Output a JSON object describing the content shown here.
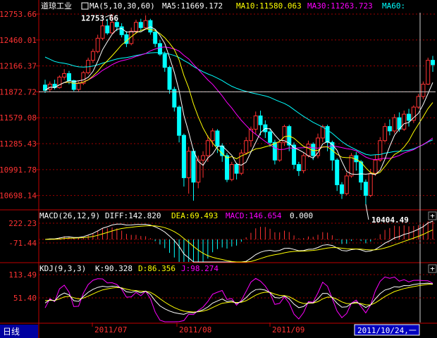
{
  "app": {
    "index_name": "道琼工业",
    "ma_label": "MA(5,10,30,60)",
    "ma5": "MA5:11669.172",
    "ma10": "MA10:11580.063",
    "ma30": "MA30:11263.723",
    "ma60": "MA60:",
    "period_tab": "日线",
    "cursor_date": "2011/10/24,一"
  },
  "main_panel": {
    "y_ticks": [
      "12753.66",
      "12460.01",
      "12166.37",
      "11872.72",
      "11579.08",
      "11285.43",
      "10991.78",
      "10698.14"
    ],
    "y_tick_values": [
      12753.66,
      12460.01,
      12166.37,
      11872.72,
      11579.08,
      11285.43,
      10991.78,
      10698.14
    ],
    "high_label": "12753.66",
    "low_label": "10404.49",
    "cursor_price": 11872.72
  },
  "macd_panel": {
    "title": "MACD(26,12,9)",
    "diff": "DIFF:142.820",
    "dea": "DEA:69.493",
    "macd": "MACD:146.654",
    "zero": "0.000",
    "y_ticks": [
      "222.23",
      "-71.44"
    ],
    "plus": "+"
  },
  "kdj_panel": {
    "title": "KDJ(9,3,3)",
    "k": "K:90.328",
    "d": "D:86.356",
    "j": "J:98.274",
    "y_ticks": [
      "113.49",
      "51.40"
    ],
    "plus": "+"
  },
  "x_axis": {
    "labels": [
      "2011/07",
      "2011/08",
      "2011/09"
    ]
  },
  "colors": {
    "up": "#ff3232",
    "down": "#00ffff",
    "ma5": "#ffffff",
    "ma10": "#ffff00",
    "ma30": "#ff00ff",
    "ma60": "#00ffff",
    "grid": "#a00000",
    "axis": "#c00000"
  },
  "chart_data": {
    "type": "candlestick",
    "ylim": [
      10404.49,
      12753.66
    ],
    "candles": [
      [
        11950,
        11890,
        12010,
        11860
      ],
      [
        11900,
        11960,
        11990,
        11870
      ],
      [
        11960,
        11920,
        12010,
        11900
      ],
      [
        11920,
        12040,
        12060,
        11910
      ],
      [
        12040,
        12080,
        12130,
        12010
      ],
      [
        12080,
        12000,
        12110,
        11960
      ],
      [
        12000,
        11900,
        12010,
        11880
      ],
      [
        11900,
        11970,
        11990,
        11880
      ],
      [
        11970,
        12090,
        12110,
        11950
      ],
      [
        12090,
        12230,
        12260,
        12070
      ],
      [
        12230,
        12330,
        12360,
        12200
      ],
      [
        12330,
        12480,
        12520,
        12310
      ],
      [
        12480,
        12620,
        12680,
        12460
      ],
      [
        12620,
        12540,
        12700,
        12520
      ],
      [
        12540,
        12660,
        12750,
        12520
      ],
      [
        12660,
        12610,
        12690,
        12560
      ],
      [
        12610,
        12520,
        12650,
        12490
      ],
      [
        12520,
        12420,
        12560,
        12380
      ],
      [
        12420,
        12560,
        12600,
        12400
      ],
      [
        12560,
        12660,
        12690,
        12530
      ],
      [
        12660,
        12600,
        12700,
        12560
      ],
      [
        12600,
        12680,
        12740,
        12580
      ],
      [
        12680,
        12550,
        12700,
        12520
      ],
      [
        12550,
        12420,
        12580,
        12380
      ],
      [
        12420,
        12300,
        12460,
        12280
      ],
      [
        12300,
        12150,
        12330,
        12100
      ],
      [
        12150,
        11900,
        12170,
        11850
      ],
      [
        11900,
        11700,
        11930,
        11650
      ],
      [
        11700,
        11380,
        11720,
        11300
      ],
      [
        11380,
        10900,
        11400,
        10800
      ],
      [
        10900,
        11200,
        11250,
        10720
      ],
      [
        11200,
        10850,
        11230,
        10640
      ],
      [
        10850,
        11100,
        11150,
        10780
      ],
      [
        11100,
        11150,
        11200,
        10900
      ],
      [
        11150,
        11320,
        11380,
        11080
      ],
      [
        11320,
        11430,
        11460,
        11250
      ],
      [
        11430,
        11260,
        11450,
        11180
      ],
      [
        11260,
        11150,
        11290,
        11080
      ],
      [
        11150,
        10880,
        11180,
        10850
      ],
      [
        10880,
        11050,
        11080,
        10860
      ],
      [
        11050,
        10950,
        11070,
        10880
      ],
      [
        10950,
        11180,
        11220,
        10930
      ],
      [
        11180,
        11320,
        11360,
        11160
      ],
      [
        11320,
        11450,
        11480,
        11250
      ],
      [
        11450,
        11600,
        11650,
        11400
      ],
      [
        11600,
        11500,
        11660,
        11380
      ],
      [
        11500,
        11420,
        11550,
        11350
      ],
      [
        11420,
        11300,
        11460,
        11250
      ],
      [
        11300,
        11100,
        11330,
        11050
      ],
      [
        11100,
        11300,
        11320,
        11080
      ],
      [
        11300,
        11480,
        11500,
        11260
      ],
      [
        11480,
        11270,
        11500,
        11200
      ],
      [
        11270,
        11050,
        11300,
        11000
      ],
      [
        11050,
        10980,
        11080,
        10920
      ],
      [
        10980,
        11150,
        11180,
        10950
      ],
      [
        11150,
        11280,
        11320,
        11130
      ],
      [
        11280,
        11150,
        11300,
        11100
      ],
      [
        11150,
        11350,
        11400,
        11120
      ],
      [
        11350,
        11480,
        11500,
        11300
      ],
      [
        11480,
        11300,
        11500,
        11200
      ],
      [
        11300,
        11100,
        11320,
        10980
      ],
      [
        11100,
        10820,
        11120,
        10750
      ],
      [
        10820,
        10720,
        10850,
        10660
      ],
      [
        10720,
        10920,
        10960,
        10700
      ],
      [
        10920,
        11150,
        11180,
        10900
      ],
      [
        11150,
        11080,
        11190,
        10980
      ],
      [
        11080,
        10850,
        11100,
        10760
      ],
      [
        10850,
        10700,
        10880,
        10600
      ],
      [
        10700,
        10950,
        11000,
        10680
      ],
      [
        10950,
        11100,
        11160,
        10920
      ],
      [
        11100,
        11320,
        11360,
        11080
      ],
      [
        11320,
        11480,
        11520,
        11300
      ],
      [
        11480,
        11430,
        11560,
        11380
      ],
      [
        11430,
        11580,
        11620,
        11400
      ],
      [
        11580,
        11450,
        11640,
        11420
      ],
      [
        11450,
        11620,
        11660,
        11430
      ],
      [
        11620,
        11550,
        11680,
        11480
      ],
      [
        11550,
        11700,
        11720,
        11520
      ],
      [
        11700,
        11820,
        11850,
        11680
      ],
      [
        11820,
        11960,
        11990,
        11790
      ],
      [
        11960,
        12230,
        12260,
        11950
      ],
      [
        12230,
        12180,
        12280,
        12100
      ]
    ]
  }
}
